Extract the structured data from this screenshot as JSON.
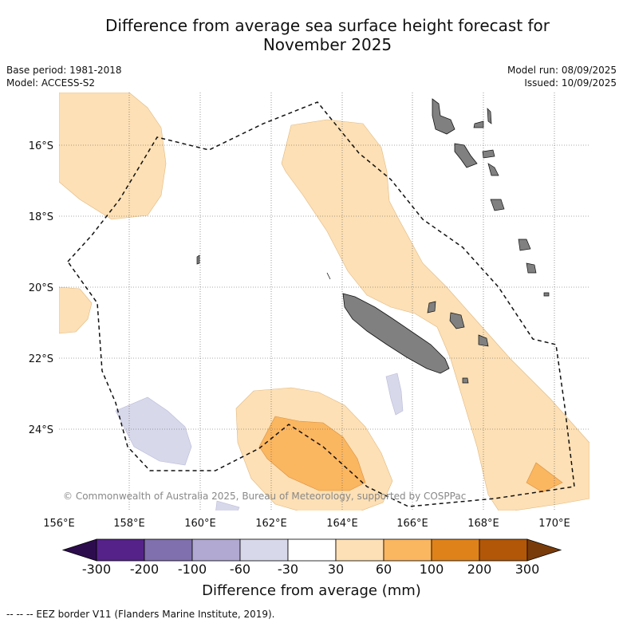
{
  "title_line1": "Difference from average sea surface height forecast for",
  "title_line2": "November 2025",
  "meta_left": {
    "base_period": "Base period: 1981-2018",
    "model": "Model: ACCESS-S2"
  },
  "meta_right": {
    "model_run": "Model run: 08/09/2025",
    "issued": "Issued: 10/09/2025"
  },
  "lat_labels": [
    "16°S",
    "18°S",
    "20°S",
    "22°S",
    "24°S"
  ],
  "lon_labels": [
    "156°E",
    "158°E",
    "160°E",
    "162°E",
    "164°E",
    "166°E",
    "168°E",
    "170°E"
  ],
  "copyright": "© Commonwealth of Australia 2025, Bureau of Meteorology, supported by COSPPac",
  "colorbar": {
    "ticks": [
      "-300",
      "-200",
      "-100",
      "-60",
      "-30",
      "30",
      "60",
      "100",
      "200",
      "300"
    ],
    "colors": [
      "#2d0c4e",
      "#55228a",
      "#8070ad",
      "#b1a9d2",
      "#d7d8ea",
      "#ffffff",
      "#fde0b5",
      "#fbb660",
      "#e0821a",
      "#b25708",
      "#7a3b0a"
    ],
    "title": "Difference from average (mm)"
  },
  "footnote": "--  --  -- EEZ border V11 (Flanders Marine Institute, 2019).",
  "colors": {
    "light_orange": "#fde0b5",
    "mid_orange": "#fbb660",
    "light_purple": "#d7d8ea",
    "land": "#808080"
  }
}
